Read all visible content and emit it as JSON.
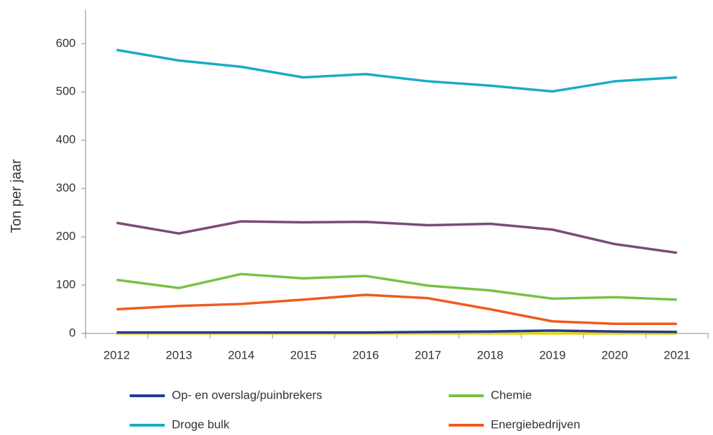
{
  "chart_data": {
    "type": "line",
    "y_label": "Ton per jaar",
    "categories": [
      "2012",
      "2013",
      "2014",
      "2015",
      "2016",
      "2017",
      "2018",
      "2019",
      "2020",
      "2021"
    ],
    "series": [
      {
        "color": "#e6d200",
        "values": [
          0,
          0,
          0,
          0,
          0,
          0,
          0,
          0,
          0,
          0
        ]
      },
      {
        "name": "Op- en overslag/puinbrekers",
        "color": "#1f3a93",
        "values": [
          2,
          2,
          2,
          2,
          2,
          3,
          4,
          6,
          4,
          3
        ]
      },
      {
        "name": "Energiebedrijven",
        "color": "#f05a1e",
        "values": [
          50,
          57,
          61,
          70,
          80,
          73,
          50,
          25,
          20,
          20
        ]
      },
      {
        "name": "Chemie",
        "color": "#7ac143",
        "values": [
          111,
          94,
          123,
          114,
          119,
          99,
          89,
          72,
          75,
          70
        ]
      },
      {
        "color": "#7b4a78",
        "values": [
          229,
          207,
          232,
          230,
          231,
          224,
          227,
          215,
          185,
          167
        ]
      },
      {
        "name": "Droge bulk",
        "color": "#1aabc8",
        "values": [
          587,
          565,
          552,
          530,
          537,
          522,
          513,
          501,
          522,
          530
        ]
      }
    ],
    "legend_order": [
      1,
      3,
      5,
      2
    ],
    "ylim": [
      0,
      670
    ],
    "yticks": [
      0,
      100,
      200,
      300,
      400,
      500,
      600
    ]
  }
}
